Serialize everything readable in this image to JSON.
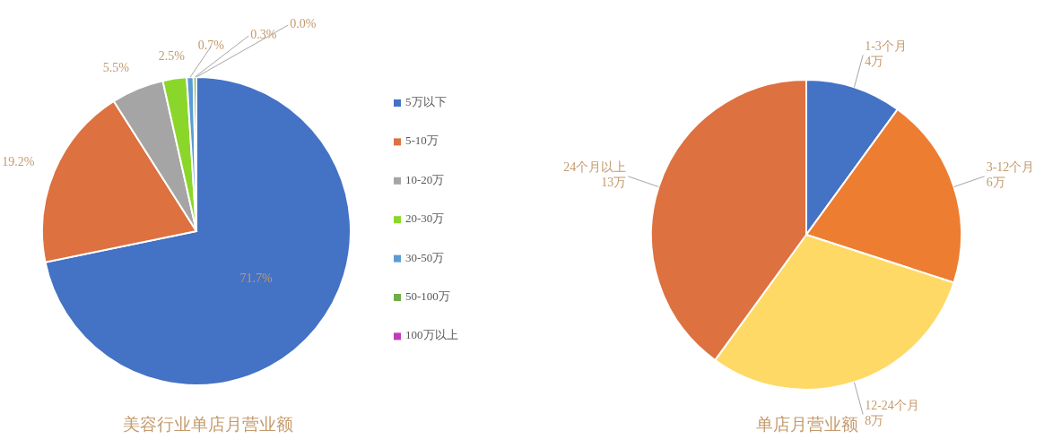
{
  "chart_data": [
    {
      "type": "pie",
      "title": "美容行业单店月营业额",
      "categories": [
        "5万以下",
        "5-10万",
        "10-20万",
        "20-30万",
        "30-50万",
        "50-100万",
        "100万以上"
      ],
      "values": [
        71.7,
        19.2,
        5.5,
        2.5,
        0.7,
        0.3,
        0.0
      ],
      "value_labels": [
        "71.7%",
        "19.2%",
        "5.5%",
        "2.5%",
        "0.7%",
        "0.3%",
        "0.0%"
      ],
      "colors": [
        "#4472c4",
        "#dd7140",
        "#a5a5a5",
        "#8bd62a",
        "#5b9bd5",
        "#70ad47",
        "#c13cb8"
      ],
      "legend": "right"
    },
    {
      "type": "pie",
      "title": "单店月营业额",
      "categories": [
        "1-3个月\n4万",
        "3-12个月\n6万",
        "12-24个月\n8万",
        "24个月以上\n13万"
      ],
      "values": [
        10,
        20,
        30,
        40
      ],
      "colors": [
        "#4472c4",
        "#ed7d31",
        "#ffd966",
        "#dd7140"
      ],
      "legend": false
    }
  ]
}
